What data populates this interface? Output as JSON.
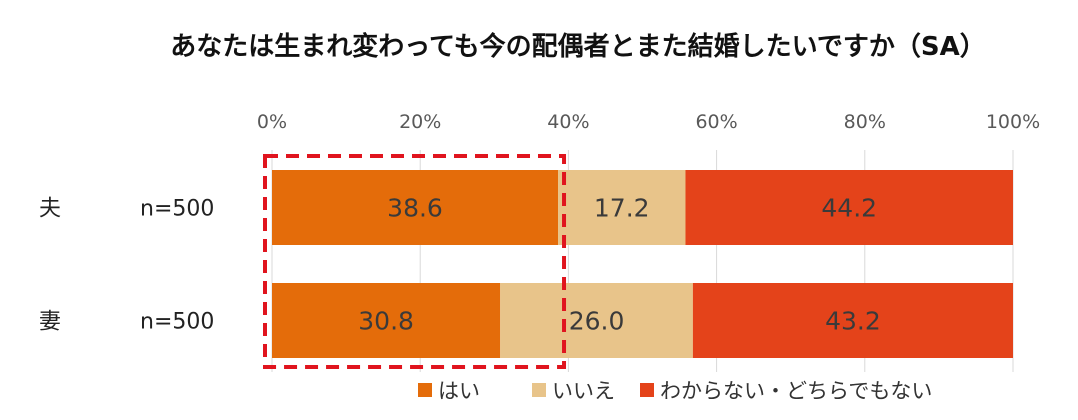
{
  "chart_data": {
    "type": "bar",
    "orientation": "horizontal",
    "stacked": "percent",
    "title": "あなたは生まれ変わっても今の配偶者とまた結婚したいですか（SA）",
    "categories": [
      "夫",
      "妻"
    ],
    "n_labels": [
      "n=500",
      "n=500"
    ],
    "series": [
      {
        "name": "はい",
        "values": [
          38.6,
          30.8
        ],
        "labels": [
          "38.6",
          "30.8"
        ],
        "color": "#E46C0A"
      },
      {
        "name": "いいえ",
        "values": [
          17.2,
          26.0
        ],
        "labels": [
          "17.2",
          "26.0"
        ],
        "color": "#E8C48A"
      },
      {
        "name": "わからない・どちらでもない",
        "values": [
          44.2,
          43.2
        ],
        "labels": [
          "44.2",
          "43.2"
        ],
        "color": "#E4431A"
      }
    ],
    "xlim": [
      0,
      100
    ],
    "xticks": [
      "0%",
      "20%",
      "40%",
      "60%",
      "80%",
      "100%"
    ],
    "grid": true,
    "legend": "bottom",
    "highlight": {
      "series": "はい",
      "style": "dashed red box",
      "color": "#E0141E"
    }
  }
}
